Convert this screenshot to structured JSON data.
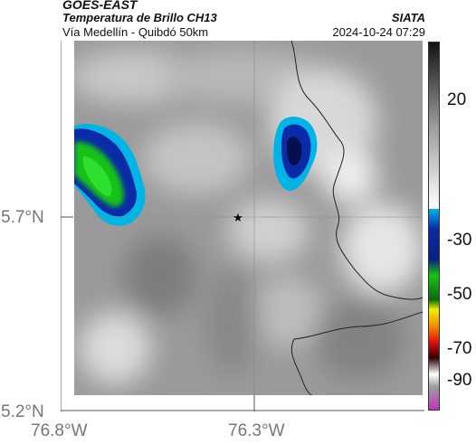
{
  "header": {
    "satellite": "GOES-EAST",
    "product": "Temperatura de Brillo CH13",
    "route": "Vía Medellín - Quibdó 50km",
    "org": "SIATA",
    "datetime": "2024-10-24 07:29"
  },
  "map": {
    "lat_labels": [
      "5.7°N",
      "5.2°N"
    ],
    "lon_labels": [
      "76.8°W",
      "76.3°W"
    ],
    "marker": "star-icon"
  },
  "colorbar": {
    "ticks": [
      "20",
      "-30",
      "-50",
      "-70",
      "-90"
    ],
    "colors": {
      "dark": "#111111",
      "gray_mid": "#9a9a9a",
      "white": "#ffffff",
      "cyan": "#00b4e6",
      "blue": "#0a2aa8",
      "green": "#18c218",
      "yellow": "#f0f000",
      "red": "#e01010",
      "magenta": "#c030c0"
    }
  }
}
